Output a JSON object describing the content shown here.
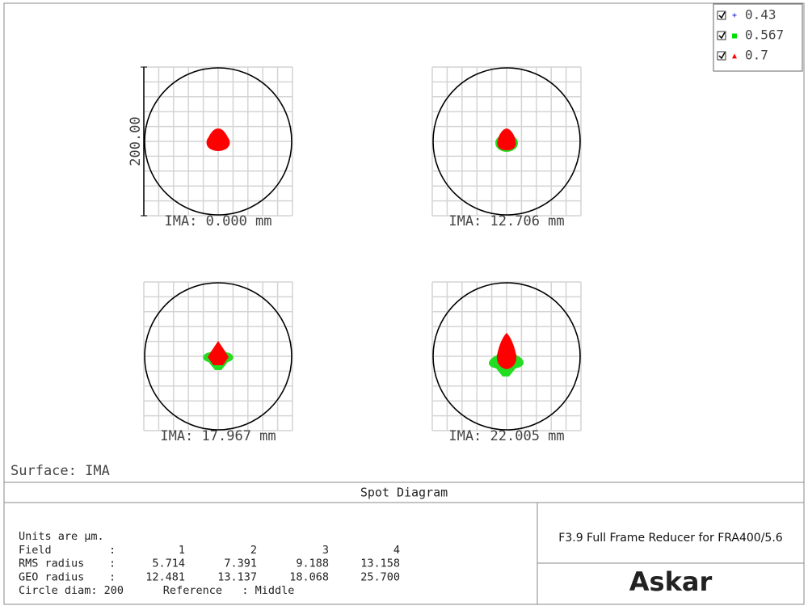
{
  "legend": [
    {
      "label": "0.43",
      "color": "#0000cc",
      "marker": "+"
    },
    {
      "label": "0.567",
      "color": "#00dd00",
      "marker": "■"
    },
    {
      "label": "0.7",
      "color": "#ff0000",
      "marker": "▲"
    }
  ],
  "scale_label": "200.00",
  "panels": [
    {
      "label": "IMA: 0.000 mm"
    },
    {
      "label": "IMA: 12.706 mm"
    },
    {
      "label": "IMA: 17.967 mm"
    },
    {
      "label": "IMA: 22.005 mm"
    }
  ],
  "surface": "Surface: IMA",
  "title": "Spot Diagram",
  "info": {
    "units": "Units are µm.",
    "rows": [
      [
        "Field",
        ":",
        "1",
        "2",
        "3",
        "4"
      ],
      [
        "RMS radius",
        ":",
        "5.714",
        "7.391",
        "9.188",
        "13.158"
      ],
      [
        "GEO radius",
        ":",
        "12.481",
        "13.137",
        "18.068",
        "25.700"
      ]
    ],
    "footer": "Circle diam: 200      Reference   : Middle"
  },
  "product": "F3.9 Full Frame Reducer for FRA400/5.6",
  "brand": "Askar"
}
